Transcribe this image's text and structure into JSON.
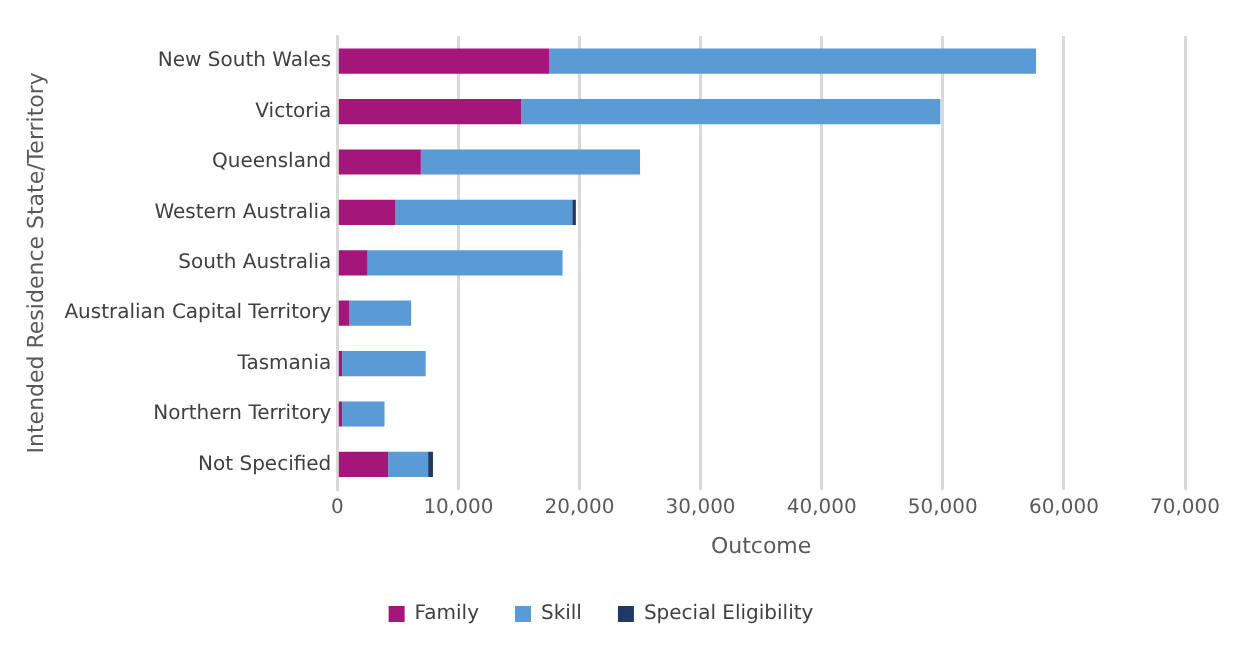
{
  "chart_data": {
    "type": "bar",
    "orientation": "horizontal",
    "stacked": true,
    "xlabel": "Outcome",
    "ylabel": "Intended Residence State/Territory",
    "categories": [
      "New South Wales",
      "Victoria",
      "Queensland",
      "Western Australia",
      "South Australia",
      "Australian Capital Territory",
      "Tasmania",
      "Northern Territory",
      "Not Specified"
    ],
    "series": [
      {
        "name": "Family",
        "color": "#a3177a",
        "values": [
          17500,
          15200,
          6900,
          4800,
          2500,
          1000,
          400,
          400,
          4200
        ]
      },
      {
        "name": "Skill",
        "color": "#5b9bd5",
        "values": [
          40200,
          34600,
          18100,
          14600,
          16100,
          5100,
          6900,
          3500,
          3300
        ]
      },
      {
        "name": "Special Eligibility",
        "color": "#1f3864",
        "values": [
          0,
          0,
          0,
          300,
          0,
          0,
          0,
          0,
          400
        ]
      }
    ],
    "xlim": [
      0,
      70000
    ],
    "xticks": [
      {
        "value": 0,
        "label": "0"
      },
      {
        "value": 10000,
        "label": "10,000"
      },
      {
        "value": 20000,
        "label": "20,000"
      },
      {
        "value": 30000,
        "label": "30,000"
      },
      {
        "value": 40000,
        "label": "40,000"
      },
      {
        "value": 50000,
        "label": "50,000"
      },
      {
        "value": 60000,
        "label": "60,000"
      },
      {
        "value": 70000,
        "label": "70,000"
      }
    ],
    "grid": "x",
    "legend": "bottom"
  }
}
